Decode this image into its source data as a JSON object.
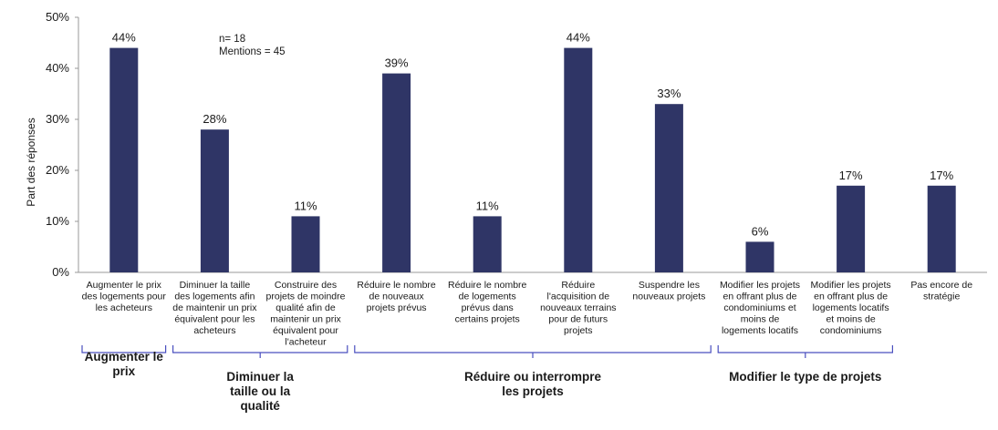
{
  "chart_data": {
    "type": "bar",
    "ylabel": "Part des réponses",
    "ylim": [
      0,
      50
    ],
    "yticks": [
      "0%",
      "10%",
      "20%",
      "30%",
      "40%",
      "50%"
    ],
    "ytick_values": [
      0,
      10,
      20,
      30,
      40,
      50
    ],
    "note": [
      "n= 18",
      "Mentions = 45"
    ],
    "color": "#2f3566",
    "bars": [
      {
        "label": [
          "Augmenter le prix",
          "des logements pour",
          "les acheteurs"
        ],
        "value": 44,
        "value_label": "44%"
      },
      {
        "label": [
          "Diminuer la taille",
          "des logements afin",
          "de maintenir un prix",
          "équivalent pour les",
          "acheteurs"
        ],
        "value": 28,
        "value_label": "28%"
      },
      {
        "label": [
          "Construire des",
          "projets de moindre",
          "qualité afin de",
          "maintenir un prix",
          "équivalent pour",
          "l'acheteur"
        ],
        "value": 11,
        "value_label": "11%"
      },
      {
        "label": [
          "Réduire le nombre",
          "de nouveaux",
          "projets prévus"
        ],
        "value": 39,
        "value_label": "39%"
      },
      {
        "label": [
          "Réduire le nombre",
          "de logements",
          "prévus dans",
          "certains projets"
        ],
        "value": 11,
        "value_label": "11%"
      },
      {
        "label": [
          "Réduire",
          "l'acquisition de",
          "nouveaux terrains",
          "pour de futurs",
          "projets"
        ],
        "value": 44,
        "value_label": "44%"
      },
      {
        "label": [
          "Suspendre les",
          "nouveaux projets"
        ],
        "value": 33,
        "value_label": "33%"
      },
      {
        "label": [
          "Modifier les projets",
          "en offrant plus de",
          "condominiums et",
          "moins de",
          "logements locatifs"
        ],
        "value": 6,
        "value_label": "6%"
      },
      {
        "label": [
          "Modifier les projets",
          "en offrant plus de",
          "logements locatifs",
          "et moins de",
          "condominiums"
        ],
        "value": 17,
        "value_label": "17%"
      },
      {
        "label": [
          "Pas encore de",
          "stratégie"
        ],
        "value": 17,
        "value_label": "17%"
      }
    ],
    "groups": [
      {
        "label": [
          "Augmenter le",
          "prix"
        ],
        "from": 0,
        "to": 0
      },
      {
        "label": [
          "Diminuer la",
          "taille ou la",
          "qualité"
        ],
        "from": 1,
        "to": 2
      },
      {
        "label": [
          "Réduire ou interrompre",
          "les projets"
        ],
        "from": 3,
        "to": 6
      },
      {
        "label": [
          "Modifier le type de projets"
        ],
        "from": 7,
        "to": 8
      }
    ]
  }
}
